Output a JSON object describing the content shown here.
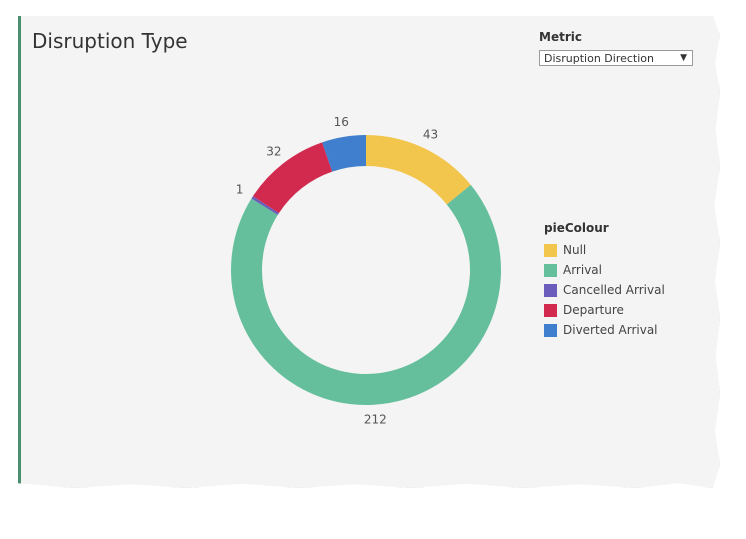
{
  "title": "Disruption Type",
  "metric": {
    "label": "Metric",
    "selected": "Disruption Direction"
  },
  "legend": {
    "title": "pieColour"
  },
  "chart_data": {
    "type": "pie",
    "donut": true,
    "categories": [
      "Null",
      "Arrival",
      "Cancelled Arrival",
      "Departure",
      "Diverted Arrival"
    ],
    "values": [
      43,
      212,
      1,
      32,
      16
    ],
    "colors": [
      "#f2c54d",
      "#66bf9c",
      "#6a5dbb",
      "#d22a4f",
      "#3f7fce"
    ]
  }
}
